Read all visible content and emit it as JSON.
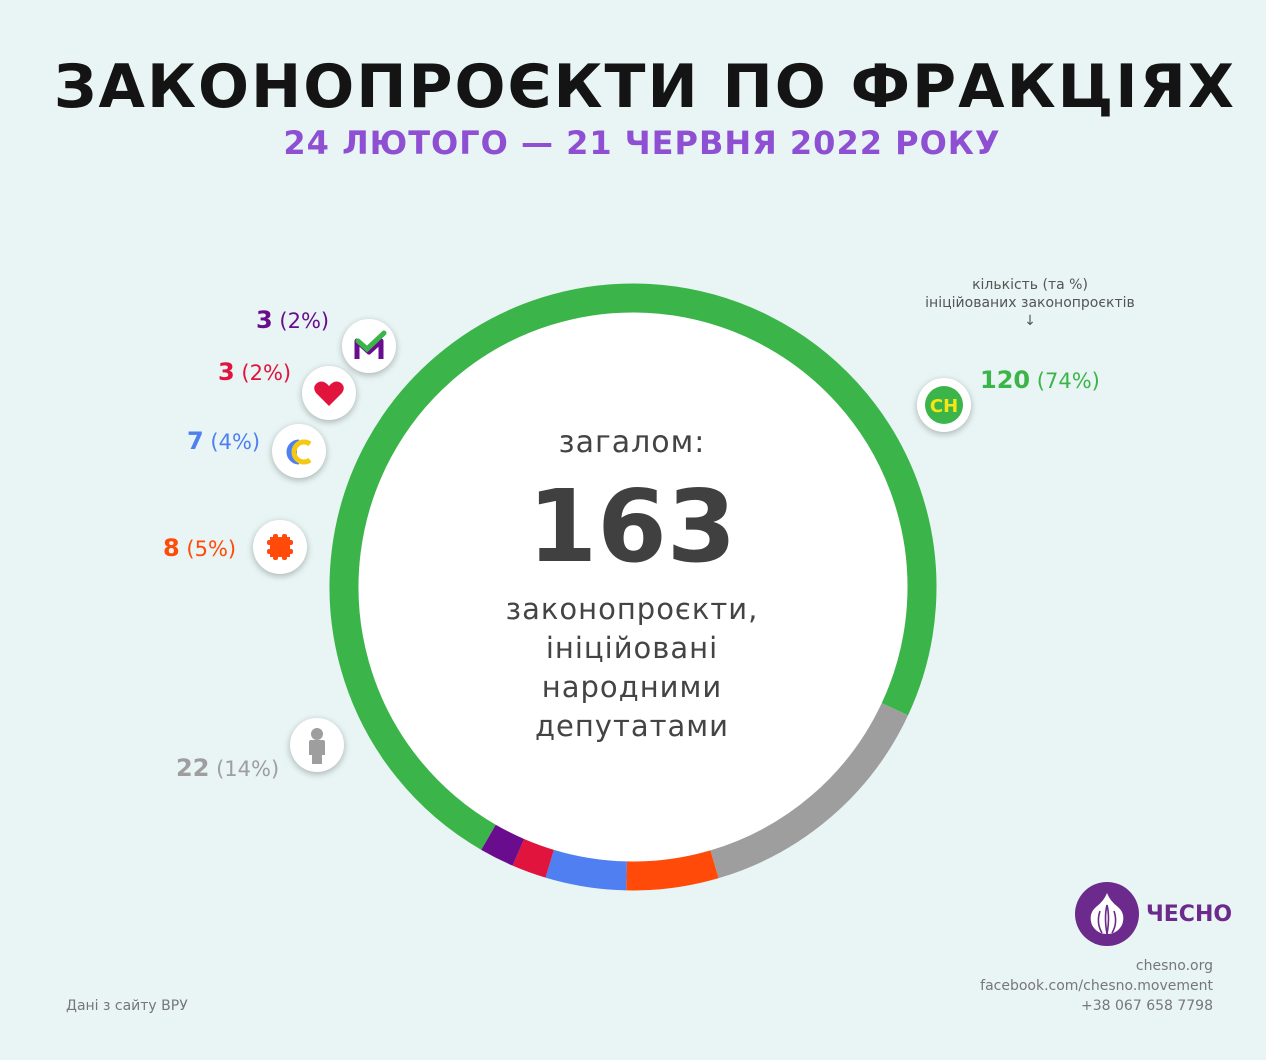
{
  "header": {
    "title": "ЗАКОНОПРОЄКТИ ПО ФРАКЦІЯХ",
    "subtitle": "24 ЛЮТОГО — 21 ЧЕРВНЯ 2022 РОКУ"
  },
  "center": {
    "top": "загалом:",
    "total": "163",
    "line1": "законопроєкти,",
    "line2": "ініційовані",
    "line3": "народними",
    "line4": "депутатами"
  },
  "note": {
    "line1": "кількість (та %)",
    "line2": "ініційованих законопроєктів",
    "arrow": "↓"
  },
  "chart_data": {
    "type": "pie",
    "total": 163,
    "slices": [
      {
        "value": 120,
        "pct": "(74%)",
        "color": "#3bb54a",
        "icon": "sluha-narodu-icon"
      },
      {
        "value": 22,
        "pct": "(14%)",
        "color": "#9e9e9e",
        "icon": "person-icon"
      },
      {
        "value": 8,
        "pct": "(5%)",
        "color": "#ff4a0a",
        "icon": "batkivshchyna-grid-icon"
      },
      {
        "value": 7,
        "pct": "(4%)",
        "color": "#4f7ff0",
        "icon": "yevropeiska-solidarnist-icon"
      },
      {
        "value": 3,
        "pct": "(2%)",
        "color": "#e0143c",
        "icon": "heart-icon"
      },
      {
        "value": 3,
        "pct": "(2%)",
        "color": "#6a0c8e",
        "icon": "m-checkmark-icon"
      }
    ]
  },
  "footer": {
    "source": "Дані з сайту ВРУ",
    "brand": "ЧЕСНО",
    "site": "chesno.org",
    "facebook": "facebook.com/chesno.movement",
    "phone": "+38 067 658 7798"
  }
}
